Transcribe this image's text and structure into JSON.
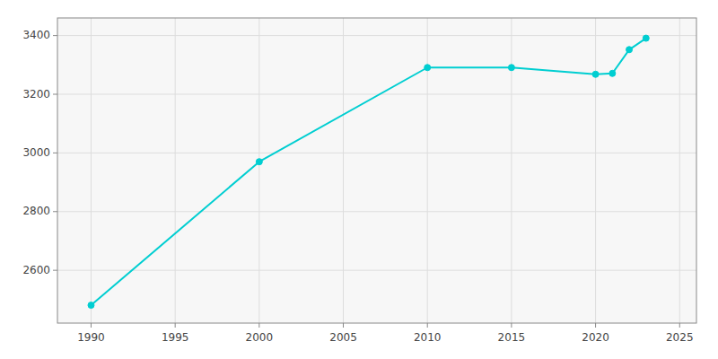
{
  "chart_data": {
    "type": "line",
    "x": [
      1990,
      2000,
      2010,
      2015,
      2020,
      2021,
      2022,
      2023
    ],
    "values": [
      2481,
      2970,
      3291,
      3291,
      3268,
      3271,
      3352,
      3391
    ],
    "color": "#00CED1",
    "marker": "circle",
    "xlim": [
      1988,
      2026
    ],
    "ylim": [
      2420,
      3460
    ],
    "xticks": [
      1990,
      1995,
      2000,
      2005,
      2010,
      2015,
      2020,
      2025
    ],
    "yticks": [
      2600,
      2800,
      3000,
      3200,
      3400
    ],
    "grid": true
  }
}
